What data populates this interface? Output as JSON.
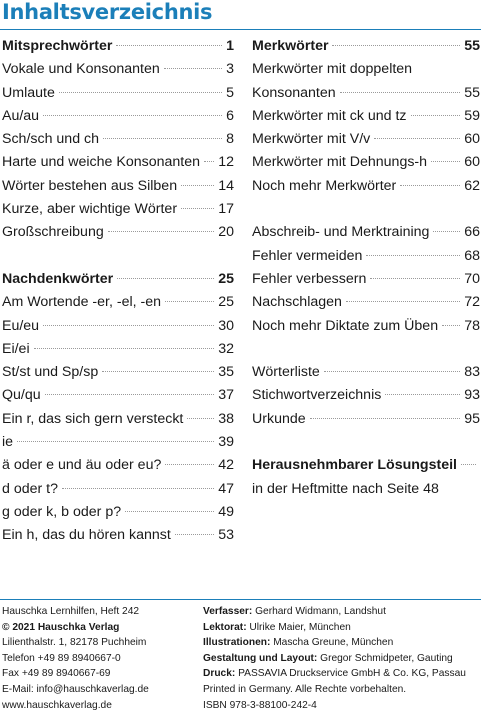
{
  "title": "Inhaltsverzeichnis",
  "left_column": [
    {
      "label": "Mitsprechwörter",
      "page": "1",
      "bold": true
    },
    {
      "label": "Vokale und Konsonanten",
      "page": "3"
    },
    {
      "label": "Umlaute",
      "page": "5"
    },
    {
      "label": "Au/au",
      "page": "6"
    },
    {
      "label": "Sch/sch und ch",
      "page": "8"
    },
    {
      "label": "Harte und weiche Konsonanten",
      "page": "12"
    },
    {
      "label": "Wörter bestehen aus Silben",
      "page": "14"
    },
    {
      "label": "Kurze, aber wichtige Wörter",
      "page": "17"
    },
    {
      "label": "Großschreibung",
      "page": "20"
    },
    {
      "gap": true
    },
    {
      "label": "Nachdenkwörter",
      "page": "25",
      "bold": true
    },
    {
      "label": "Am Wortende -er, -el, -en",
      "page": "25"
    },
    {
      "label": "Eu/eu",
      "page": "30"
    },
    {
      "label": "Ei/ei",
      "page": "32"
    },
    {
      "label": "St/st und Sp/sp",
      "page": "35"
    },
    {
      "label": "Qu/qu",
      "page": "37"
    },
    {
      "label": "Ein r, das sich gern versteckt",
      "page": "38"
    },
    {
      "label": "ie",
      "page": "39"
    },
    {
      "label": "ä oder e und äu oder eu?",
      "page": "42"
    },
    {
      "label": "d oder t?",
      "page": "47"
    },
    {
      "label": "g oder k, b oder p?",
      "page": "49"
    },
    {
      "label": "Ein h, das du hören kannst",
      "page": "53"
    }
  ],
  "right_column": [
    {
      "label": "Merkwörter",
      "page": "55",
      "bold": true
    },
    {
      "label": "Merkwörter mit doppelten",
      "page": "",
      "nodots": true
    },
    {
      "label": "Konsonanten",
      "page": "55"
    },
    {
      "label": "Merkwörter mit ck und tz",
      "page": "59"
    },
    {
      "label": "Merkwörter mit V/v",
      "page": "60"
    },
    {
      "label": "Merkwörter mit Dehnungs-h",
      "page": "60"
    },
    {
      "label": "Noch mehr Merkwörter",
      "page": "62"
    },
    {
      "gap": true
    },
    {
      "label": "Abschreib- und Merktraining",
      "page": "66"
    },
    {
      "label": "Fehler vermeiden",
      "page": "68"
    },
    {
      "label": "Fehler verbessern",
      "page": "70"
    },
    {
      "label": "Nachschlagen",
      "page": "72"
    },
    {
      "label": "Noch mehr Diktate zum Üben",
      "page": "78"
    },
    {
      "gap": true
    },
    {
      "label": "Wörterliste",
      "page": "83"
    },
    {
      "label": "Stichwortverzeichnis",
      "page": "93"
    },
    {
      "label": "Urkunde",
      "page": "95"
    },
    {
      "gap": true
    },
    {
      "label": "Herausnehmbarer Lösungsteil",
      "page": "",
      "bold": true
    },
    {
      "label": "in der Heftmitte nach Seite 48",
      "page": "",
      "nodots": true
    }
  ],
  "footer_left": [
    {
      "text": "Hauschka Lernhilfen, Heft 242"
    },
    {
      "text": "© 2021 Hauschka Verlag",
      "bold": true
    },
    {
      "text": "Lilienthalstr. 1, 82178 Puchheim"
    },
    {
      "text": "Telefon +49 89 8940667-0"
    },
    {
      "text": "Fax +49 89 8940667-69"
    },
    {
      "text": "E-Mail: info@hauschkaverlag.de"
    },
    {
      "text": "www.hauschkaverlag.de"
    }
  ],
  "footer_right": [
    {
      "label": "Verfasser:",
      "text": " Gerhard Widmann, Landshut"
    },
    {
      "label": "Lektorat:",
      "text": " Ulrike Maier, München"
    },
    {
      "label": "Illustrationen:",
      "text": " Mascha Greune, München"
    },
    {
      "label": "Gestaltung und Layout:",
      "text": " Gregor Schmidpeter, Gauting"
    },
    {
      "label": "Druck:",
      "text": " PASSAVIA Druckservice GmbH & Co. KG, Passau"
    },
    {
      "label": "",
      "text": "Printed in Germany. Alle Rechte vorbehalten."
    },
    {
      "label": "",
      "text": "ISBN 978-3-88100-242-4"
    }
  ]
}
